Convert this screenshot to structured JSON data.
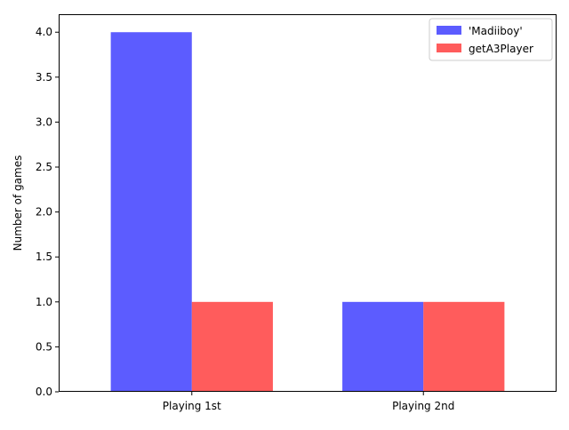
{
  "chart_data": {
    "type": "bar",
    "title": "",
    "xlabel": "",
    "ylabel": "Number of games",
    "categories": [
      "Playing 1st",
      "Playing 2nd"
    ],
    "series": [
      {
        "name": "'Madiiboy'",
        "values": [
          4,
          1
        ],
        "color": "#3333ff"
      },
      {
        "name": "getA3Player",
        "values": [
          1,
          1
        ],
        "color": "#ff3333"
      }
    ],
    "ylim": [
      0,
      4.2
    ],
    "yticks": [
      "0.0",
      "0.5",
      "1.0",
      "1.5",
      "2.0",
      "2.5",
      "3.0",
      "3.5",
      "4.0"
    ],
    "grid": false,
    "legend_position": "top-right"
  }
}
